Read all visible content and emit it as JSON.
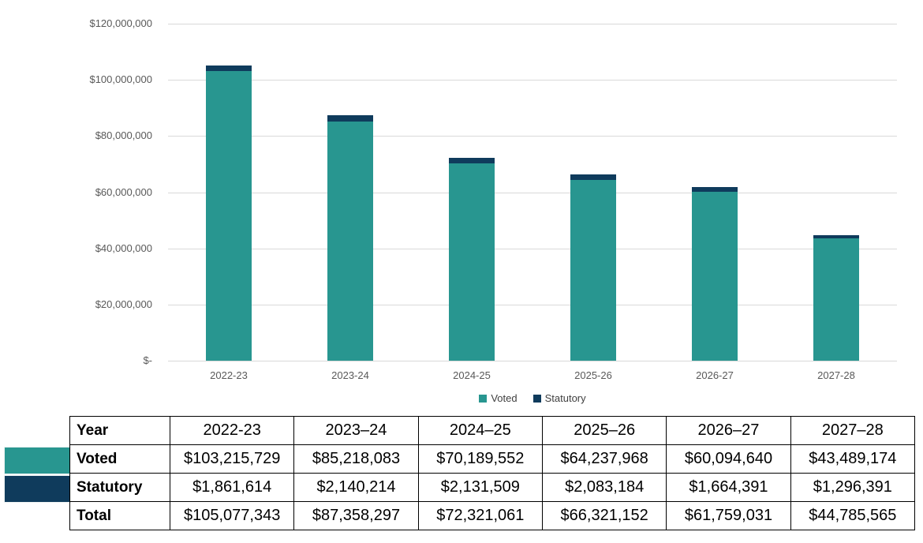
{
  "chart_data": {
    "type": "bar",
    "stacked": true,
    "title": "",
    "xlabel": "",
    "ylabel": "",
    "categories": [
      "2022-23",
      "2023-24",
      "2024-25",
      "2025-26",
      "2026-27",
      "2027-28"
    ],
    "series": [
      {
        "name": "Voted",
        "color": "#289690",
        "values": [
          103215729,
          85218083,
          70189552,
          64237968,
          60094640,
          43489174
        ]
      },
      {
        "name": "Statutory",
        "color": "#0f3b5c",
        "values": [
          1861614,
          2140214,
          2131509,
          2083184,
          1664391,
          1296391
        ]
      }
    ],
    "ylim": [
      0,
      120000000
    ],
    "ytick_interval": 20000000,
    "ytick_labels_top_to_bottom": [
      "$120,000,000",
      "$100,000,000",
      "$80,000,000",
      "$60,000,000",
      "$40,000,000",
      "$20,000,000",
      "$-"
    ],
    "grid": true,
    "gridline_color": "#d9d9d9",
    "axis_label_color": "#595959",
    "legend_position": "bottom",
    "legend_entries": [
      "Voted",
      "Statutory"
    ]
  },
  "table": {
    "header": [
      "Year",
      "2022-23",
      "2023–24",
      "2024–25",
      "2025–26",
      "2026–27",
      "2027–28"
    ],
    "rows": [
      {
        "label": "Voted",
        "swatch": "#289690",
        "values": [
          "$103,215,729",
          "$85,218,083",
          "$70,189,552",
          "$64,237,968",
          "$60,094,640",
          "$43,489,174"
        ]
      },
      {
        "label": "Statutory",
        "swatch": "#0f3b5c",
        "values": [
          "$1,861,614",
          "$2,140,214",
          "$2,131,509",
          "$2,083,184",
          "$1,664,391",
          "$1,296,391"
        ]
      },
      {
        "label": "Total",
        "swatch": null,
        "values": [
          "$105,077,343",
          "$87,358,297",
          "$72,321,061",
          "$66,321,152",
          "$61,759,031",
          "$44,785,565"
        ]
      }
    ]
  }
}
